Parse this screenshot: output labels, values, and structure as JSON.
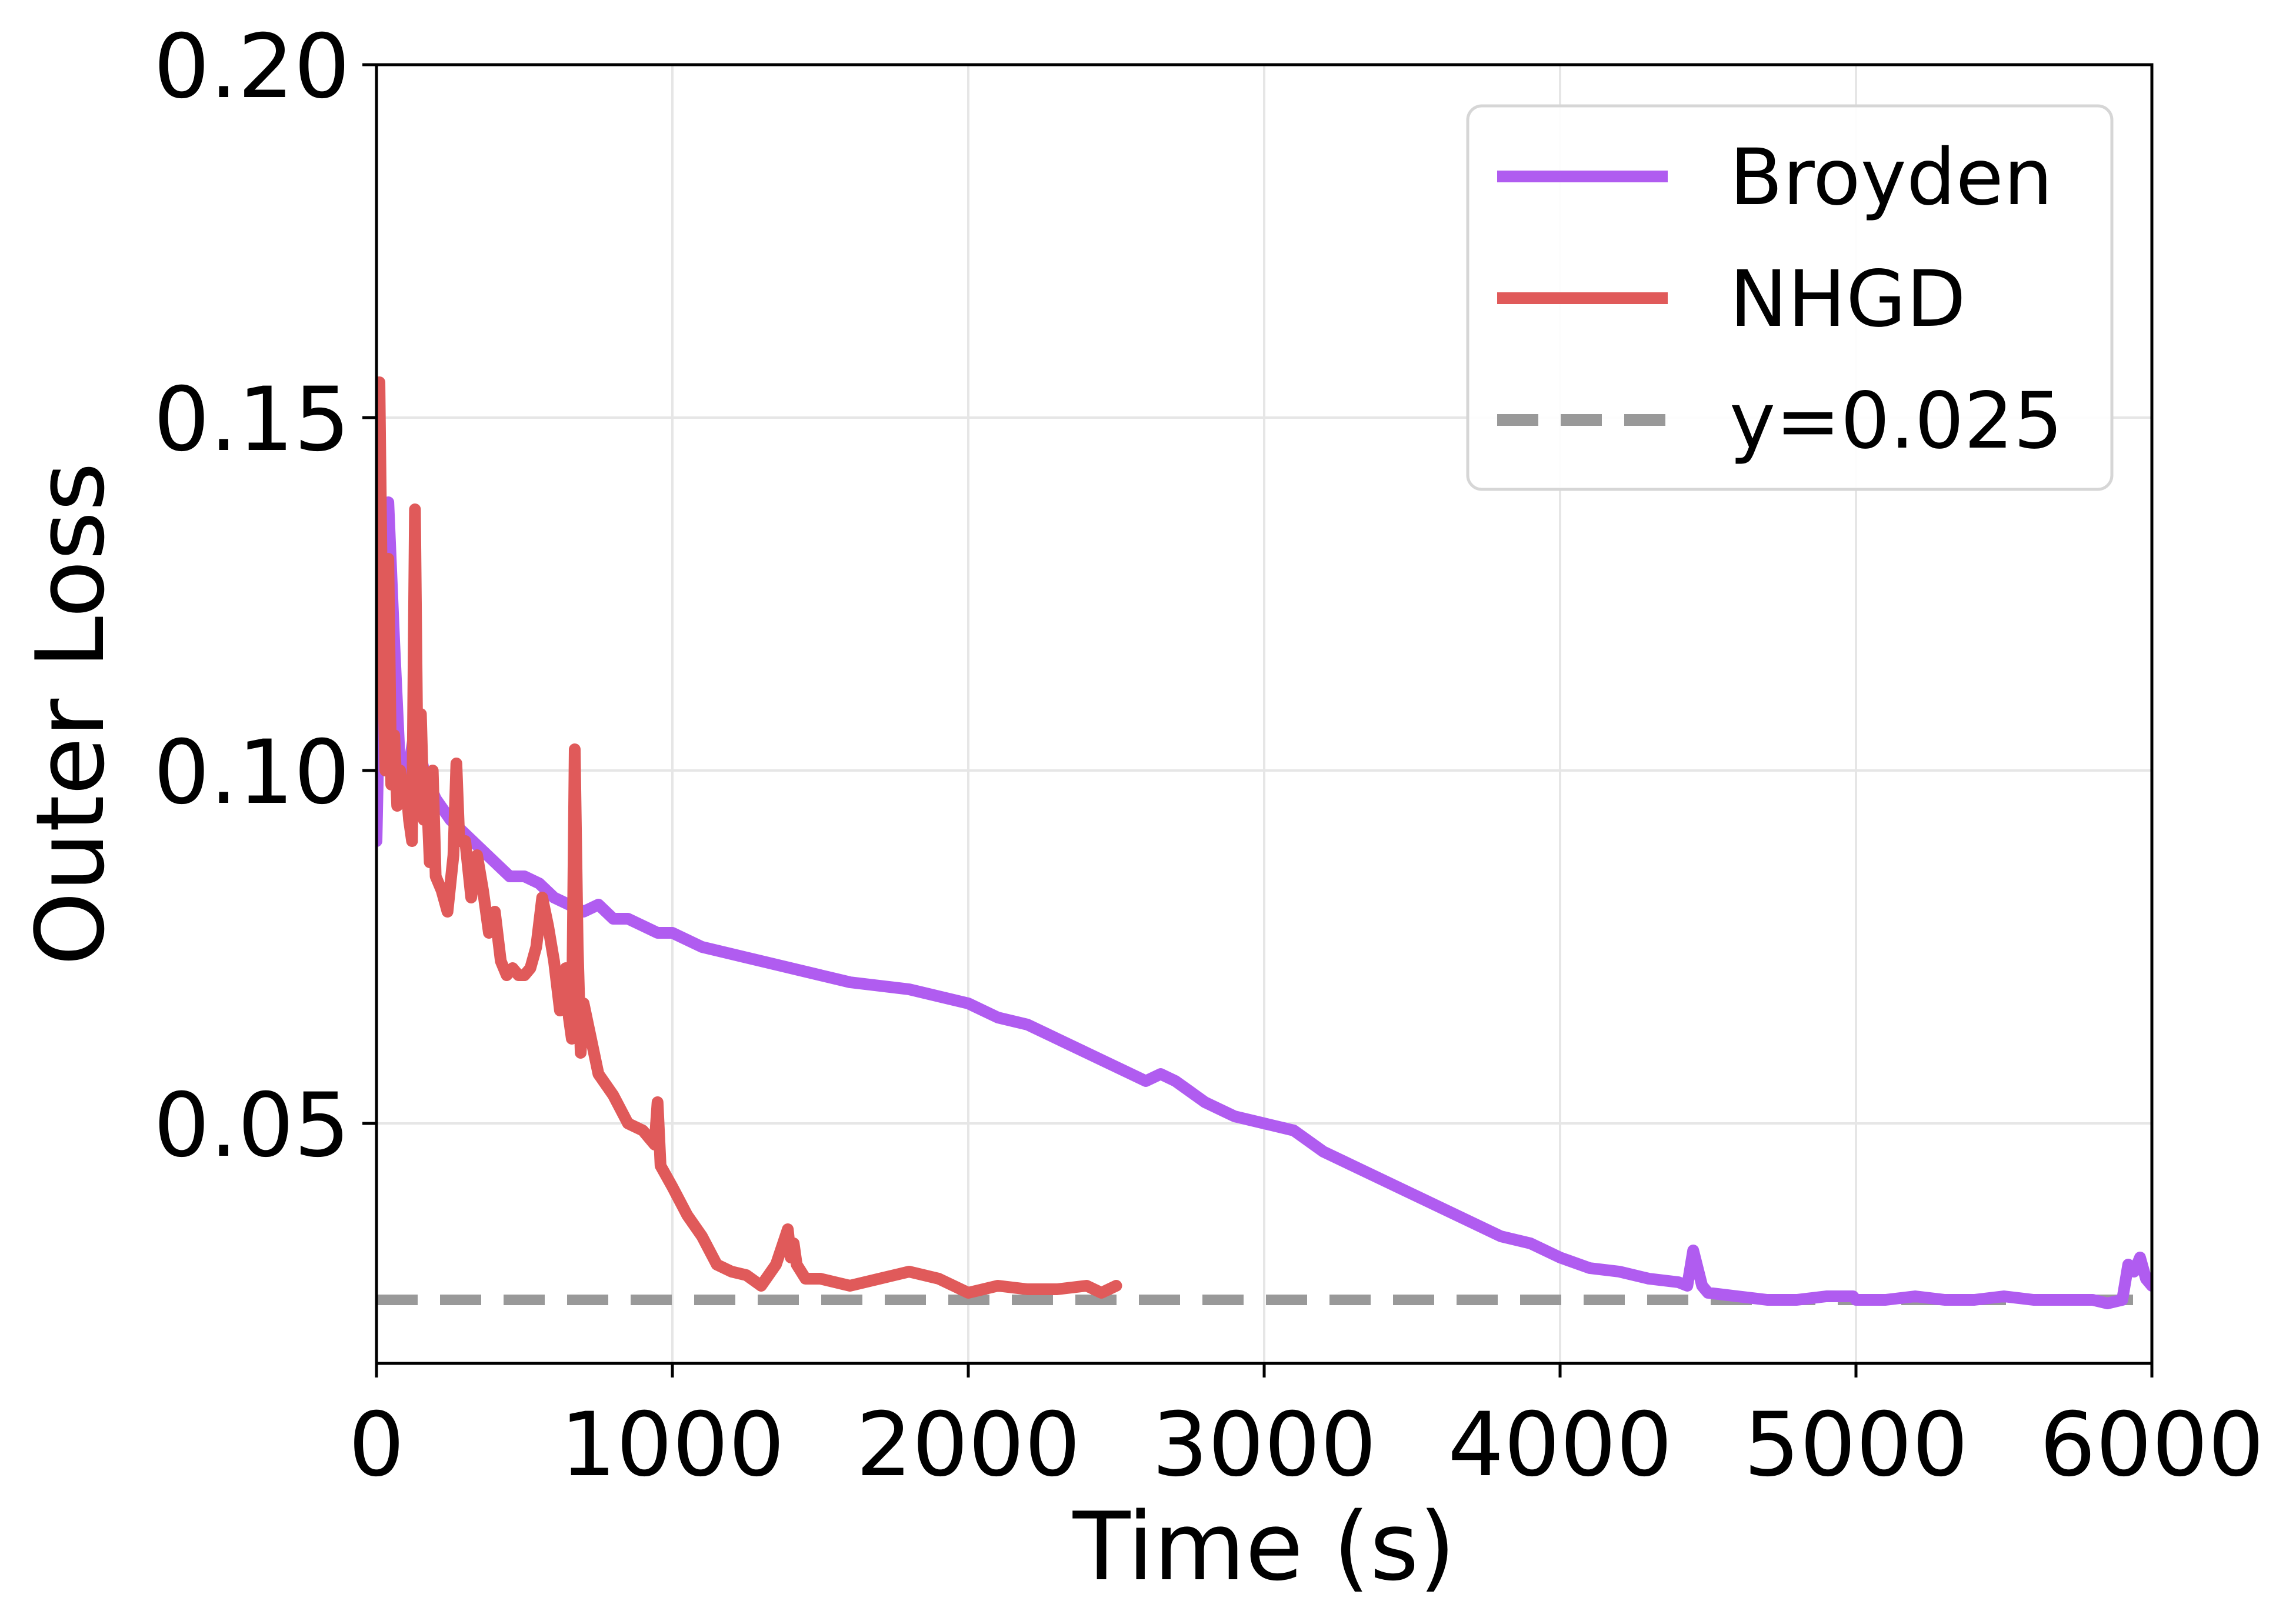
{
  "chart_data": {
    "type": "line",
    "title": "",
    "xlabel": "Time (s)",
    "ylabel": "Outer Loss",
    "xlim": [
      0,
      6000
    ],
    "ylim": [
      0.016,
      0.2
    ],
    "xticks": [
      0,
      1000,
      2000,
      3000,
      4000,
      5000,
      6000
    ],
    "xtick_labels": [
      "0",
      "1000",
      "2000",
      "3000",
      "4000",
      "5000",
      "6000"
    ],
    "yticks": [
      0.05,
      0.1,
      0.15,
      0.2
    ],
    "ytick_labels": [
      "0.05",
      "0.10",
      "0.15",
      "0.20"
    ],
    "grid": true,
    "legend_position": "top-right",
    "series": [
      {
        "name": "Broyden",
        "color": "#b05cf0",
        "style": "solid",
        "x": [
          0,
          20,
          40,
          60,
          80,
          100,
          130,
          160,
          200,
          250,
          300,
          350,
          400,
          450,
          500,
          550,
          600,
          650,
          700,
          750,
          800,
          850,
          900,
          950,
          1000,
          1100,
          1200,
          1300,
          1400,
          1500,
          1600,
          1700,
          1800,
          1900,
          2000,
          2100,
          2200,
          2300,
          2400,
          2500,
          2600,
          2650,
          2700,
          2800,
          2900,
          3000,
          3100,
          3200,
          3300,
          3400,
          3500,
          3600,
          3700,
          3800,
          3900,
          4000,
          4100,
          4200,
          4300,
          4400,
          4430,
          4450,
          4480,
          4500,
          4600,
          4700,
          4800,
          4900,
          4990,
          5000,
          5100,
          5200,
          5300,
          5400,
          5500,
          5600,
          5700,
          5800,
          5850,
          5900,
          5920,
          5940,
          5960,
          5980,
          6000
        ],
        "y": [
          0.09,
          0.132,
          0.138,
          0.118,
          0.1,
          0.098,
          0.106,
          0.1,
          0.096,
          0.093,
          0.091,
          0.089,
          0.087,
          0.085,
          0.085,
          0.084,
          0.082,
          0.081,
          0.08,
          0.081,
          0.079,
          0.079,
          0.078,
          0.077,
          0.077,
          0.075,
          0.074,
          0.073,
          0.072,
          0.071,
          0.07,
          0.0695,
          0.069,
          0.068,
          0.067,
          0.065,
          0.064,
          0.062,
          0.06,
          0.058,
          0.056,
          0.057,
          0.056,
          0.053,
          0.051,
          0.05,
          0.049,
          0.046,
          0.044,
          0.042,
          0.04,
          0.038,
          0.036,
          0.034,
          0.033,
          0.031,
          0.0295,
          0.029,
          0.028,
          0.0275,
          0.027,
          0.032,
          0.027,
          0.026,
          0.0255,
          0.025,
          0.025,
          0.0255,
          0.0255,
          0.025,
          0.025,
          0.0255,
          0.025,
          0.025,
          0.0255,
          0.025,
          0.025,
          0.025,
          0.0245,
          0.025,
          0.03,
          0.029,
          0.031,
          0.028,
          0.027
        ]
      },
      {
        "name": "NHGD",
        "color": "#e05a5a",
        "style": "solid",
        "x": [
          0,
          10,
          20,
          30,
          40,
          50,
          60,
          70,
          80,
          90,
          100,
          110,
          120,
          130,
          140,
          150,
          160,
          170,
          180,
          190,
          200,
          220,
          240,
          260,
          270,
          280,
          300,
          320,
          340,
          360,
          380,
          400,
          420,
          440,
          460,
          480,
          500,
          520,
          540,
          560,
          580,
          600,
          620,
          640,
          650,
          660,
          670,
          680,
          690,
          700,
          750,
          800,
          850,
          900,
          940,
          950,
          960,
          1000,
          1050,
          1100,
          1150,
          1200,
          1250,
          1300,
          1350,
          1390,
          1400,
          1410,
          1420,
          1450,
          1500,
          1600,
          1700,
          1800,
          1850,
          1900,
          2000,
          2100,
          2200,
          2300,
          2400,
          2450,
          2500
        ],
        "y": [
          0.12,
          0.155,
          0.118,
          0.1,
          0.13,
          0.098,
          0.105,
          0.095,
          0.1,
          0.097,
          0.098,
          0.093,
          0.09,
          0.137,
          0.095,
          0.108,
          0.093,
          0.097,
          0.087,
          0.1,
          0.085,
          0.083,
          0.08,
          0.088,
          0.101,
          0.09,
          0.09,
          0.082,
          0.088,
          0.083,
          0.077,
          0.08,
          0.073,
          0.071,
          0.072,
          0.071,
          0.071,
          0.072,
          0.075,
          0.082,
          0.078,
          0.073,
          0.066,
          0.072,
          0.065,
          0.062,
          0.103,
          0.075,
          0.06,
          0.067,
          0.057,
          0.054,
          0.05,
          0.049,
          0.047,
          0.053,
          0.044,
          0.041,
          0.037,
          0.034,
          0.03,
          0.029,
          0.0285,
          0.027,
          0.03,
          0.035,
          0.031,
          0.033,
          0.03,
          0.028,
          0.028,
          0.027,
          0.028,
          0.029,
          0.0285,
          0.028,
          0.026,
          0.027,
          0.0265,
          0.0265,
          0.027,
          0.026,
          0.027
        ]
      }
    ],
    "reference_lines": [
      {
        "name": "y=0.025",
        "y": 0.025,
        "color": "#999999",
        "style": "dashed"
      }
    ],
    "legend": [
      "Broyden",
      "NHGD",
      "y=0.025"
    ]
  }
}
